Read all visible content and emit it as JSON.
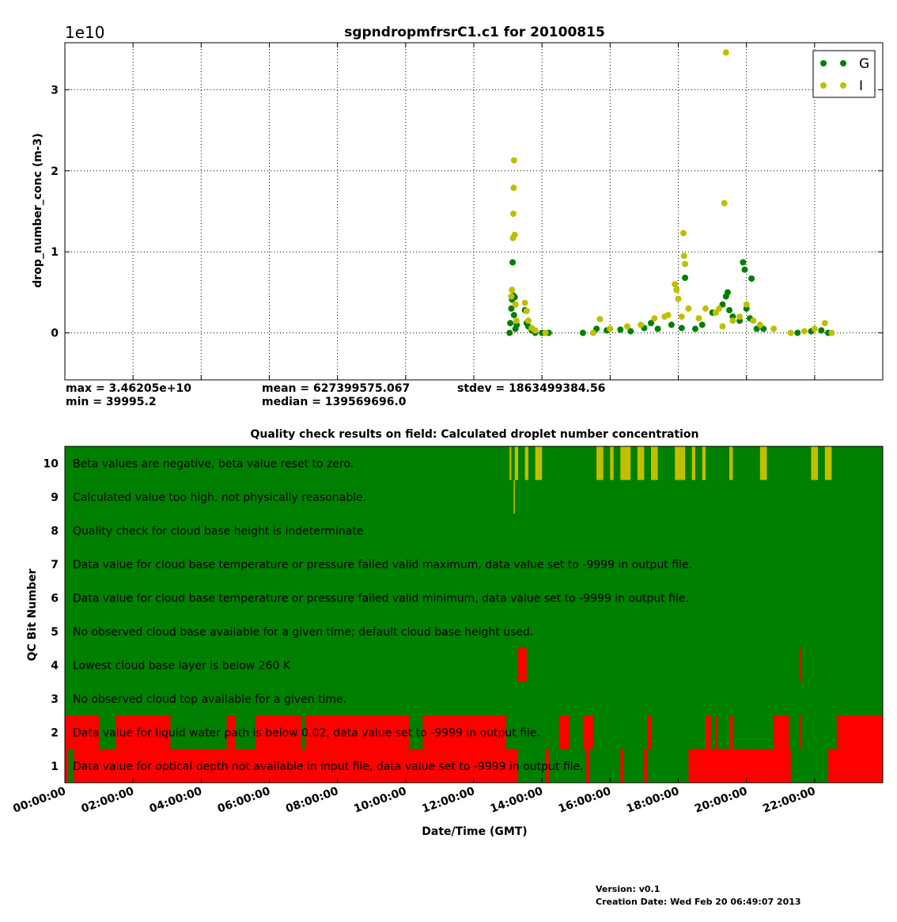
{
  "colors": {
    "G": "#007f00",
    "I": "#bfbf00",
    "qc_ok": "#008000",
    "qc_bad": "#ff0000",
    "qc_indeterminate": "#bfbf00"
  },
  "chart_data": [
    {
      "type": "scatter",
      "title": "sgpndropmfrsrC1.c1 for 20100815",
      "offset_text": "1e10",
      "ylabel": "drop_number_conc (m-3)",
      "ylim": [
        -0.58,
        3.58
      ],
      "y_unit_scale": "1e10",
      "yticks": [
        0,
        1,
        2,
        3
      ],
      "xlim_hours": [
        0,
        24
      ],
      "grid": true,
      "legend": {
        "placement": "top-right",
        "entries": [
          "G",
          "I"
        ]
      },
      "series": [
        {
          "name": "G",
          "points": [
            [
              13.05,
              0.0
            ],
            [
              13.07,
              0.12
            ],
            [
              13.1,
              0.3
            ],
            [
              13.12,
              0.41
            ],
            [
              13.14,
              0.87
            ],
            [
              13.16,
              0.46
            ],
            [
              13.18,
              0.22
            ],
            [
              13.2,
              0.44
            ],
            [
              13.22,
              0.05
            ],
            [
              13.26,
              0.1
            ],
            [
              13.5,
              0.28
            ],
            [
              13.55,
              0.12
            ],
            [
              13.6,
              0.08
            ],
            [
              13.7,
              0.03
            ],
            [
              13.8,
              0.0
            ],
            [
              14.0,
              0.0
            ],
            [
              14.2,
              0.0
            ],
            [
              15.2,
              0.0
            ],
            [
              15.6,
              0.05
            ],
            [
              15.9,
              0.03
            ],
            [
              16.3,
              0.04
            ],
            [
              16.6,
              0.02
            ],
            [
              17.0,
              0.06
            ],
            [
              17.2,
              0.12
            ],
            [
              17.4,
              0.05
            ],
            [
              17.8,
              0.1
            ],
            [
              18.1,
              0.06
            ],
            [
              18.2,
              0.68
            ],
            [
              18.5,
              0.05
            ],
            [
              18.7,
              0.1
            ],
            [
              19.0,
              0.25
            ],
            [
              19.3,
              0.35
            ],
            [
              19.4,
              0.45
            ],
            [
              19.45,
              0.5
            ],
            [
              19.5,
              0.28
            ],
            [
              19.6,
              0.2
            ],
            [
              19.8,
              0.15
            ],
            [
              19.9,
              0.87
            ],
            [
              19.95,
              0.78
            ],
            [
              20.0,
              0.3
            ],
            [
              20.1,
              0.18
            ],
            [
              20.15,
              0.67
            ],
            [
              20.3,
              0.05
            ],
            [
              20.5,
              0.05
            ],
            [
              21.5,
              0.0
            ],
            [
              21.9,
              0.02
            ],
            [
              22.2,
              0.03
            ],
            [
              22.4,
              0.0
            ]
          ]
        },
        {
          "name": "I",
          "points": [
            [
              13.1,
              0.45
            ],
            [
              13.12,
              0.53
            ],
            [
              13.15,
              1.17
            ],
            [
              13.16,
              1.47
            ],
            [
              13.17,
              1.79
            ],
            [
              13.18,
              2.13
            ],
            [
              13.2,
              1.21
            ],
            [
              13.22,
              0.35
            ],
            [
              13.25,
              0.15
            ],
            [
              13.5,
              0.37
            ],
            [
              13.55,
              0.27
            ],
            [
              13.6,
              0.15
            ],
            [
              13.7,
              0.06
            ],
            [
              13.8,
              0.03
            ],
            [
              14.1,
              0.0
            ],
            [
              15.5,
              0.0
            ],
            [
              15.7,
              0.17
            ],
            [
              16.0,
              0.05
            ],
            [
              16.5,
              0.08
            ],
            [
              16.9,
              0.1
            ],
            [
              17.3,
              0.18
            ],
            [
              17.6,
              0.2
            ],
            [
              17.7,
              0.22
            ],
            [
              17.9,
              0.6
            ],
            [
              17.95,
              0.53
            ],
            [
              18.0,
              0.42
            ],
            [
              18.1,
              0.2
            ],
            [
              18.15,
              1.23
            ],
            [
              18.17,
              0.95
            ],
            [
              18.2,
              0.85
            ],
            [
              18.3,
              0.3
            ],
            [
              18.6,
              0.18
            ],
            [
              18.8,
              0.3
            ],
            [
              19.1,
              0.25
            ],
            [
              19.2,
              0.3
            ],
            [
              19.3,
              0.08
            ],
            [
              19.35,
              1.6
            ],
            [
              19.4,
              3.46
            ],
            [
              19.6,
              0.15
            ],
            [
              19.8,
              0.2
            ],
            [
              20.0,
              0.35
            ],
            [
              20.2,
              0.15
            ],
            [
              20.4,
              0.1
            ],
            [
              20.8,
              0.05
            ],
            [
              21.3,
              0.0
            ],
            [
              21.7,
              0.02
            ],
            [
              22.0,
              0.05
            ],
            [
              22.3,
              0.12
            ],
            [
              22.5,
              0.0
            ]
          ]
        }
      ]
    },
    {
      "type": "heatmap",
      "title": "Quality check results on field: Calculated droplet number concentration",
      "ylabel": "QC Bit Number",
      "xlabel": "Date/Time (GMT)",
      "x_tick_labels": [
        "00:00:00",
        "02:00:00",
        "04:00:00",
        "06:00:00",
        "08:00:00",
        "10:00:00",
        "12:00:00",
        "14:00:00",
        "16:00:00",
        "18:00:00",
        "20:00:00",
        "22:00:00"
      ],
      "bits": [
        {
          "bit": 10,
          "label": "Beta values are negative, beta value reset to zero.",
          "flagged_hours": [
            [
              13.05,
              13.1
            ],
            [
              13.2,
              13.3
            ],
            [
              13.5,
              13.6
            ],
            [
              13.8,
              14.0
            ],
            [
              15.6,
              15.8
            ],
            [
              16.0,
              16.1
            ],
            [
              16.3,
              16.6
            ],
            [
              16.8,
              17.0
            ],
            [
              17.2,
              17.4
            ],
            [
              17.9,
              18.2
            ],
            [
              18.4,
              18.5
            ],
            [
              18.7,
              18.8
            ],
            [
              19.5,
              19.6
            ],
            [
              20.4,
              20.6
            ],
            [
              21.9,
              22.1
            ],
            [
              22.3,
              22.5
            ]
          ],
          "flag": "qc_indeterminate"
        },
        {
          "bit": 9,
          "label": "Calculated value too high, not physically reasonable.",
          "flagged_hours": [
            [
              13.17,
              13.2
            ]
          ],
          "flag": "qc_indeterminate"
        },
        {
          "bit": 8,
          "label": "Quality check for cloud base height is indeterminate",
          "flagged_hours": [],
          "flag": "qc_indeterminate"
        },
        {
          "bit": 7,
          "label": "Data value for cloud base temperature or pressure failed valid maximum, data value set to -9999 in output file.",
          "flagged_hours": [],
          "flag": "qc_bad"
        },
        {
          "bit": 6,
          "label": "Data value for cloud base temperature or pressure failed valid minimum, data value set to -9999 in output file.",
          "flagged_hours": [],
          "flag": "qc_bad"
        },
        {
          "bit": 5,
          "label": "No observed cloud base available for a given time; default cloud base height used.",
          "flagged_hours": [],
          "flag": "qc_bad"
        },
        {
          "bit": 4,
          "label": "Lowest cloud base layer is below 260 K",
          "flagged_hours": [
            [
              13.3,
              13.55
            ],
            [
              21.55,
              21.6
            ]
          ],
          "flag": "qc_bad"
        },
        {
          "bit": 3,
          "label": "No observed cloud top available for a given time.",
          "flagged_hours": [],
          "flag": "qc_bad"
        },
        {
          "bit": 2,
          "label": "Data value for liquid water path is below 0.02, data value set to -9999 in output file.",
          "flagged_hours": [
            [
              0,
              1.0
            ],
            [
              1.5,
              3.1
            ],
            [
              4.75,
              5.0
            ],
            [
              5.6,
              6.95
            ],
            [
              7.05,
              10.1
            ],
            [
              10.5,
              12.95
            ],
            [
              14.5,
              14.8
            ],
            [
              15.2,
              15.5
            ],
            [
              17.1,
              17.2
            ],
            [
              18.8,
              18.95
            ],
            [
              19.1,
              19.15
            ],
            [
              19.5,
              19.6
            ],
            [
              20.8,
              21.25
            ],
            [
              21.55,
              21.6
            ],
            [
              22.65,
              24
            ]
          ],
          "flag": "qc_bad"
        },
        {
          "bit": 1,
          "label": "Data value  for optical depth not available in input file, data value set to -9999 in output file.",
          "flagged_hours": [
            [
              0,
              0.1
            ],
            [
              0.25,
              13.3
            ],
            [
              14.1,
              14.2
            ],
            [
              15.3,
              15.4
            ],
            [
              16.3,
              16.4
            ],
            [
              17.0,
              17.1
            ],
            [
              18.3,
              21.3
            ],
            [
              22.4,
              24
            ]
          ],
          "flag": "qc_bad"
        }
      ]
    }
  ],
  "stats": {
    "max": "max = 3.46205e+10",
    "min": "min = 39995.2",
    "mean": "mean = 627399575.067",
    "median": "median = 139569696.0",
    "stdev": "stdev = 1863499384.56"
  },
  "footer": {
    "version": "Version: v0.1",
    "creation": "Creation Date: Wed Feb 20 06:49:07 2013"
  }
}
